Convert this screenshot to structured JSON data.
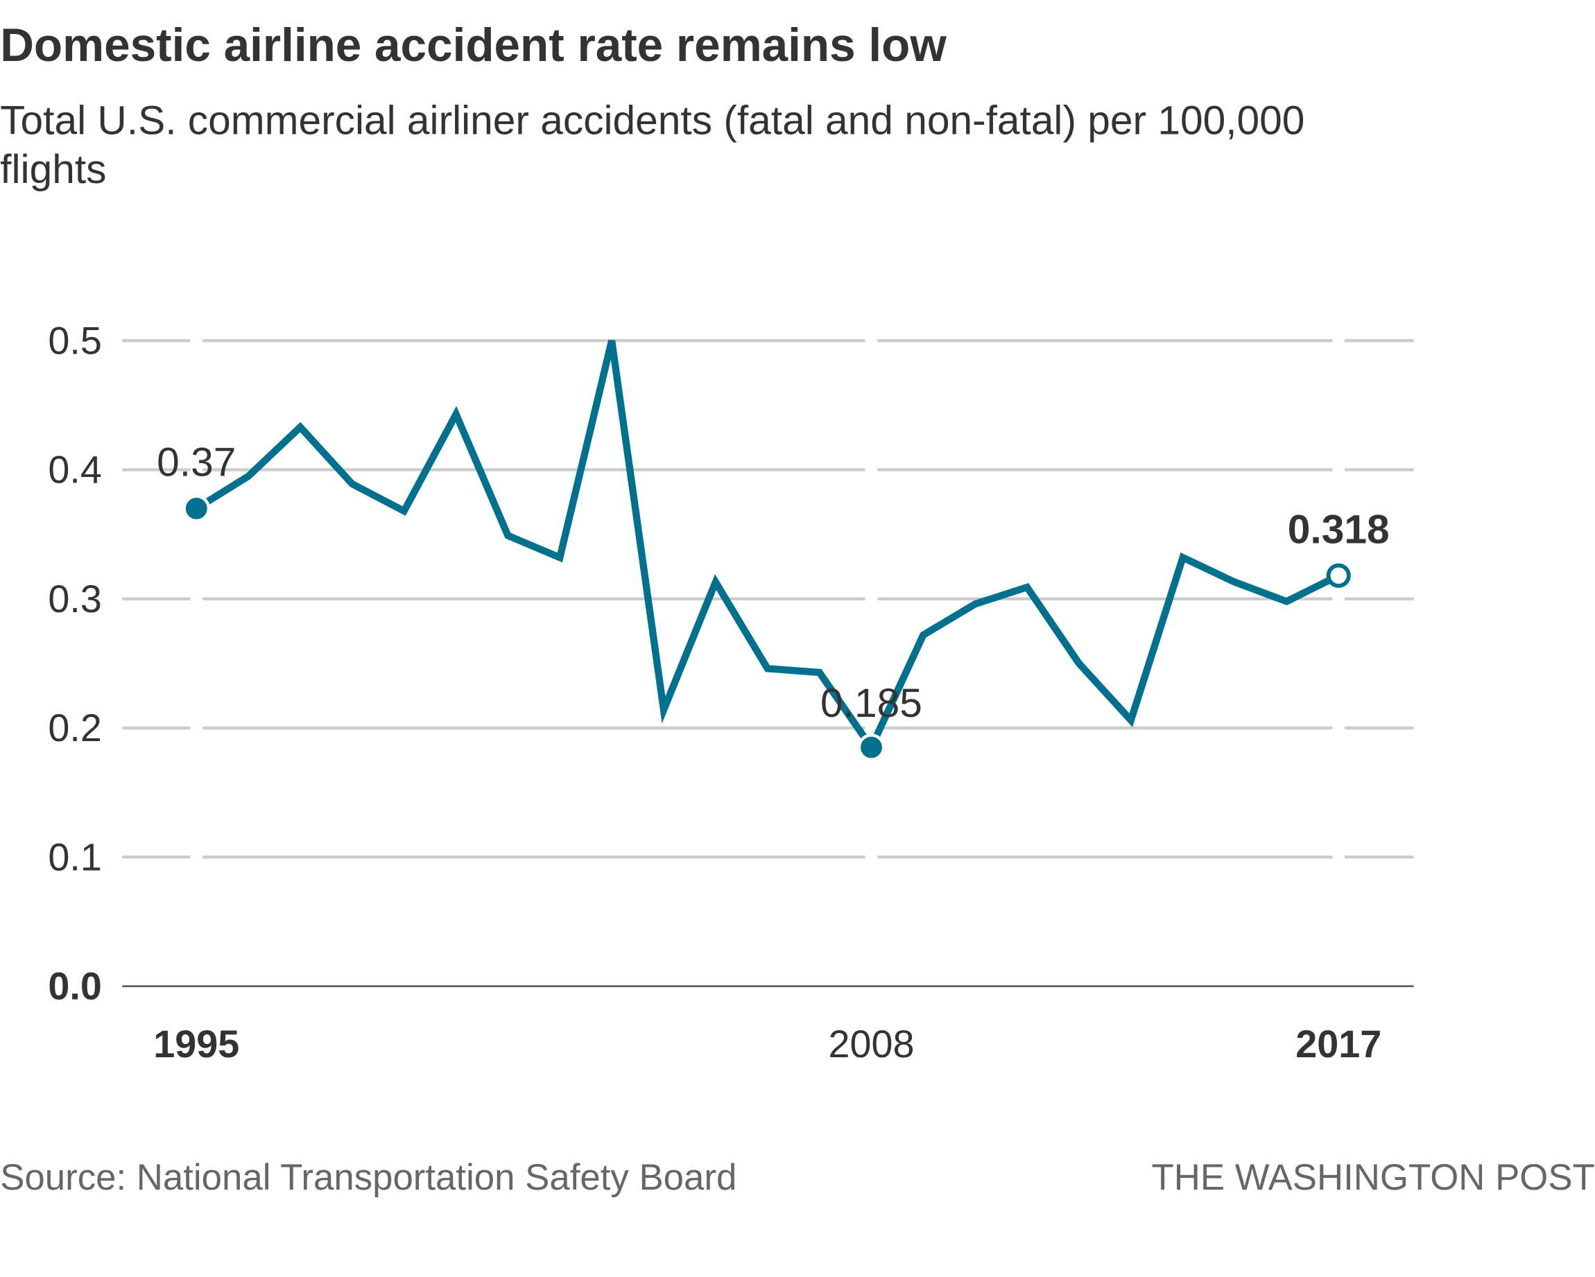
{
  "chart_data": {
    "type": "line",
    "title": "Domestic airline accident rate remains low",
    "subtitle_line1": "Total U.S. commercial airliner accidents (fatal and non-fatal) per 100,000",
    "subtitle_line2": "flights",
    "x": [
      1995,
      1996,
      1997,
      1998,
      1999,
      2000,
      2001,
      2002,
      2003,
      2004,
      2005,
      2006,
      2007,
      2008,
      2009,
      2010,
      2011,
      2012,
      2013,
      2014,
      2015,
      2016,
      2017
    ],
    "values": [
      0.37,
      0.395,
      0.433,
      0.389,
      0.368,
      0.443,
      0.349,
      0.332,
      0.5,
      0.214,
      0.313,
      0.246,
      0.243,
      0.185,
      0.272,
      0.296,
      0.309,
      0.25,
      0.206,
      0.332,
      0.313,
      0.298,
      0.318
    ],
    "xlim": [
      1995,
      2017
    ],
    "ylim": [
      0,
      0.5
    ],
    "y_ticks": [
      "0.0",
      "0.1",
      "0.2",
      "0.3",
      "0.4",
      "0.5"
    ],
    "x_ticks": [
      {
        "year": 1995,
        "label": "1995",
        "bold": true
      },
      {
        "year": 2008,
        "label": "2008",
        "bold": false
      },
      {
        "year": 2017,
        "label": "2017",
        "bold": true
      }
    ],
    "annotations": [
      {
        "year": 1995,
        "value": 0.37,
        "label": "0.37",
        "marker": "filled"
      },
      {
        "year": 2008,
        "value": 0.185,
        "label": "0.185",
        "marker": "filled"
      },
      {
        "year": 2017,
        "value": 0.318,
        "label": "0.318",
        "marker": "open",
        "bold": true
      }
    ],
    "grid": true,
    "line_color": "#00708f",
    "grid_color": "#cccccc",
    "source": "Source: National Transportation Safety Board",
    "credit": "THE WASHINGTON POST"
  }
}
